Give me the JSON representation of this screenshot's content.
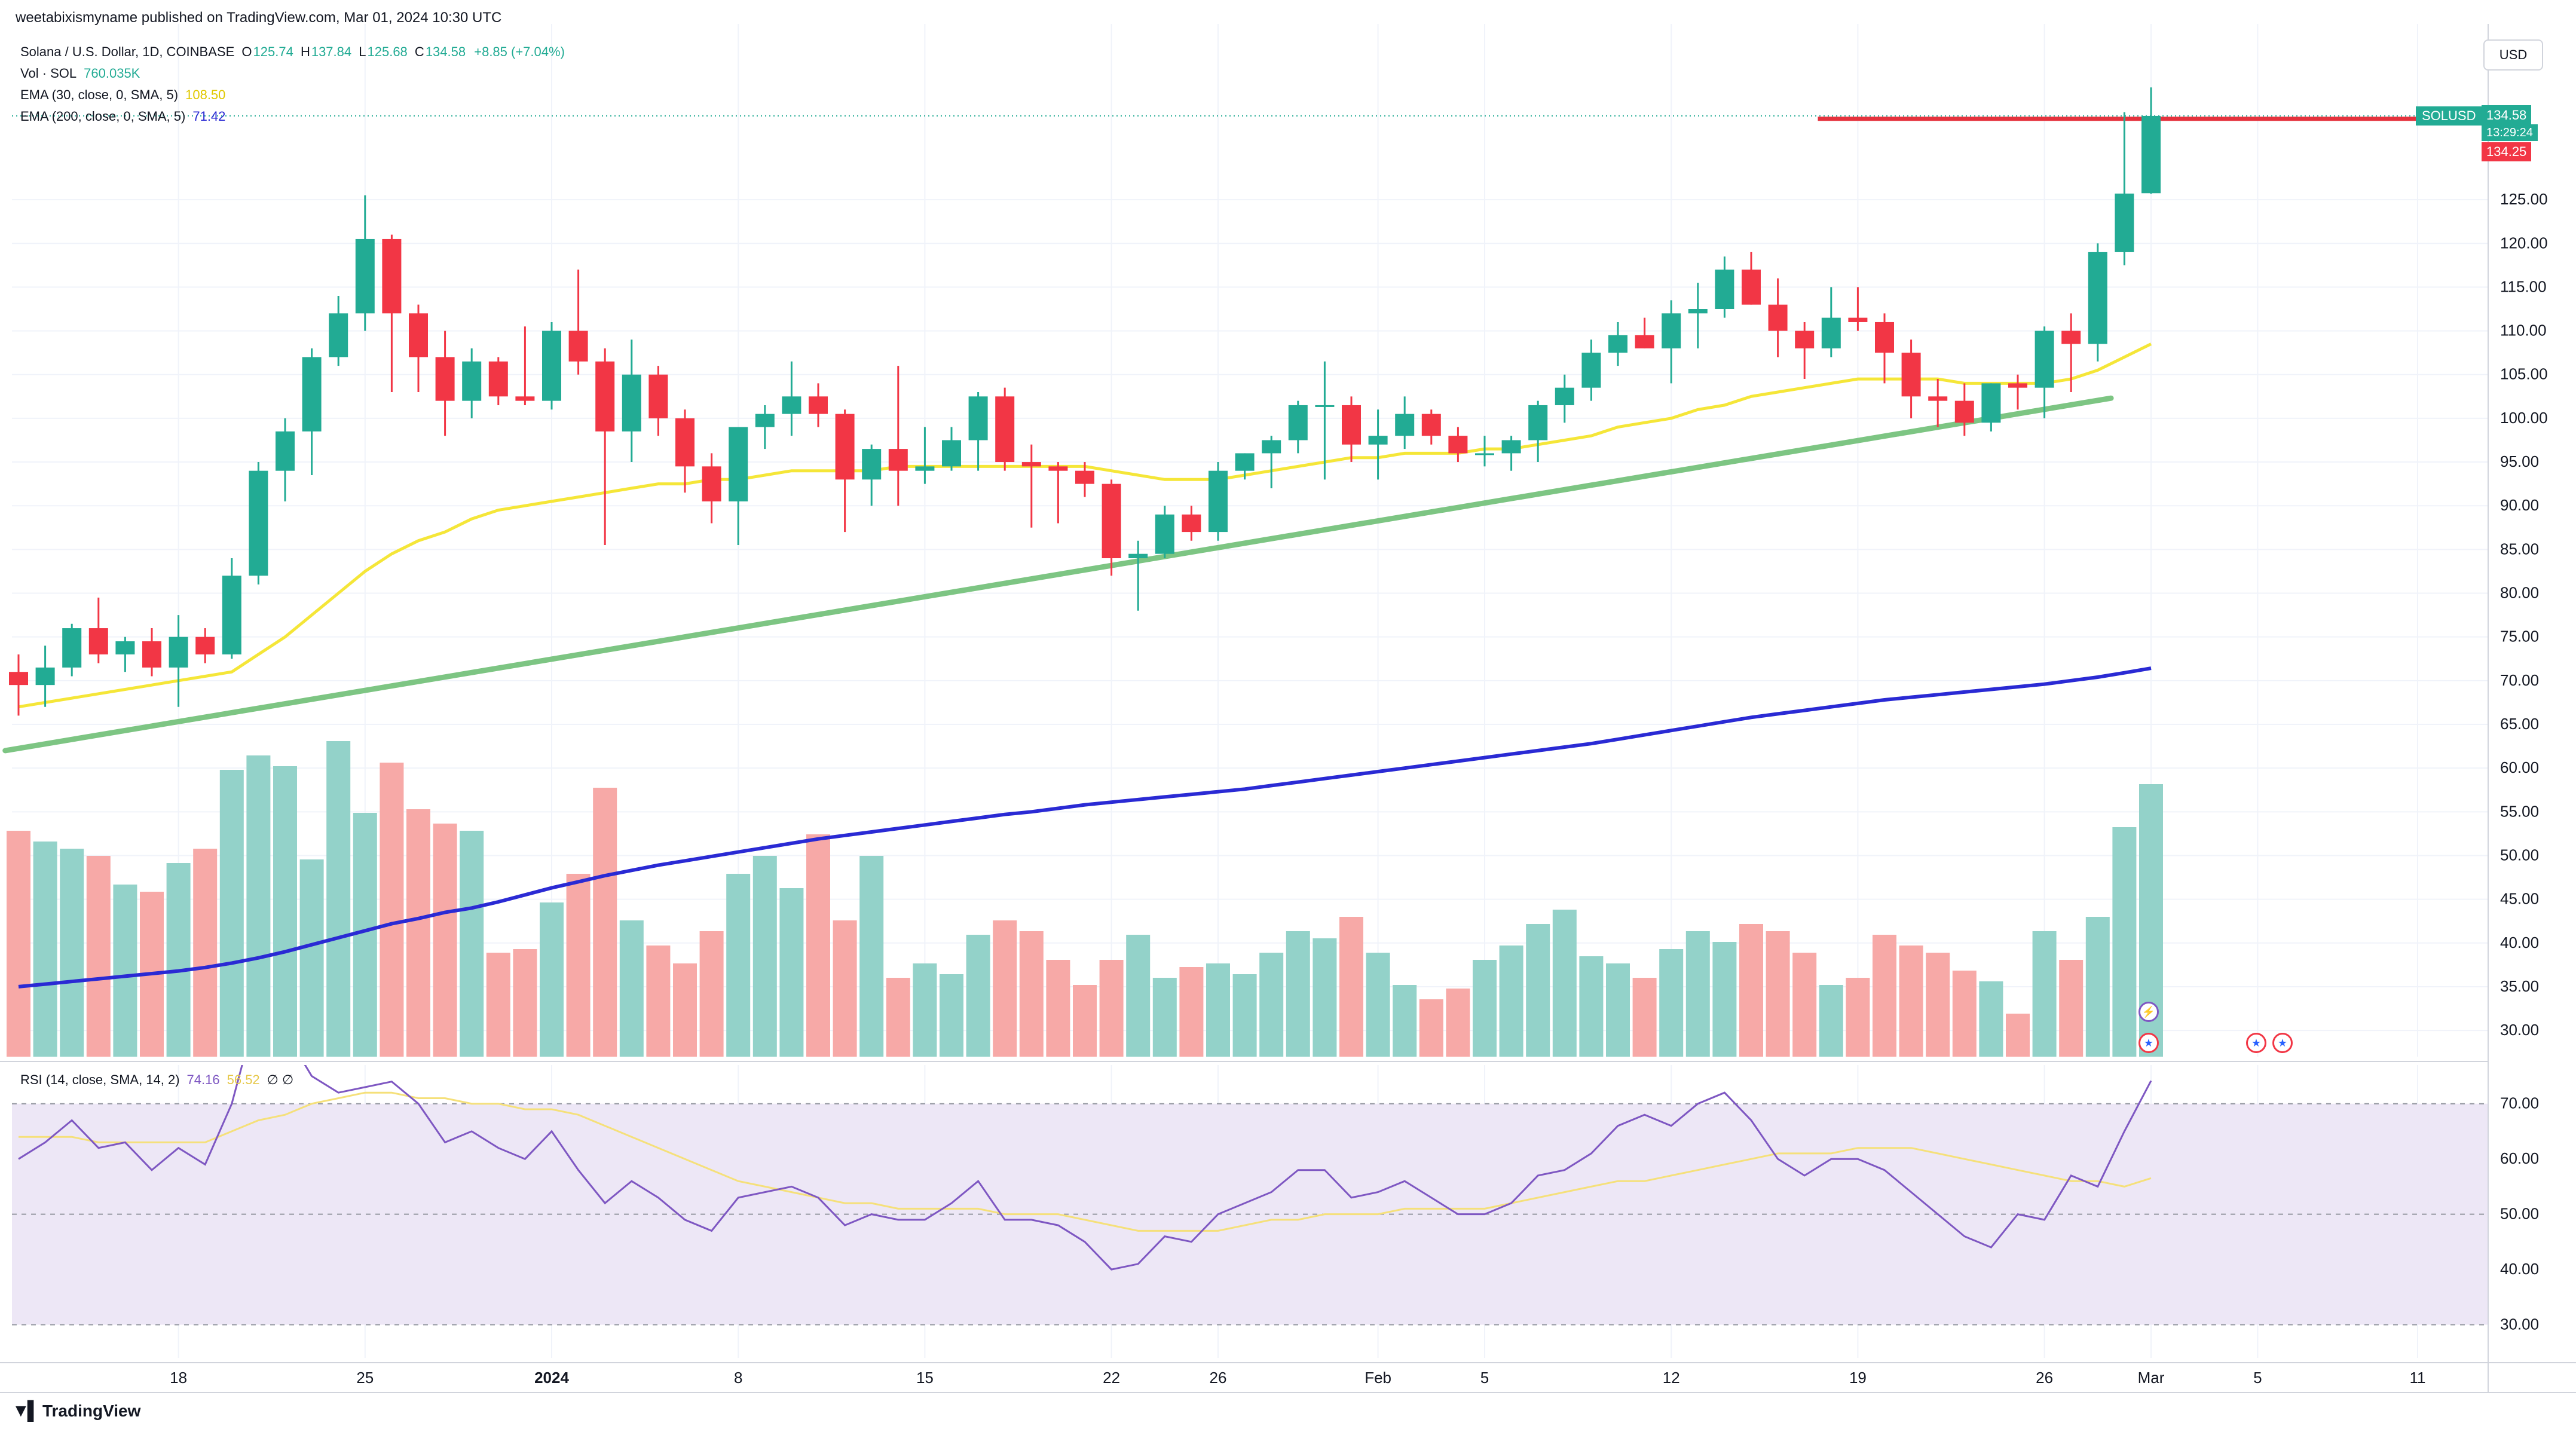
{
  "header": {
    "published": "weetabixismyname published on TradingView.com, Mar 01, 2024 10:30 UTC"
  },
  "legend": {
    "title": "Solana / U.S. Dollar, 1D, COINBASE",
    "ohlc": {
      "O_label": "O",
      "O": "125.74",
      "H_label": "H",
      "H": "137.84",
      "L_label": "L",
      "L": "125.68",
      "C_label": "C",
      "C": "134.58",
      "change": "+8.85 (+7.04%)"
    },
    "vol_label": "Vol · SOL",
    "vol_value": "760.035K",
    "ema30_label": "EMA (30, close, 0, SMA, 5)",
    "ema30_value": "108.50",
    "ema200_label": "EMA (200, close, 0, SMA, 5)",
    "ema200_value": "71.42",
    "rsi_label": "RSI (14, close, SMA, 14, 2)",
    "rsi_value": "74.16",
    "rsi_ma_value": "56.52",
    "rsi_extra": "∅ ∅"
  },
  "currency": "USD",
  "price_tags": {
    "symbol": "SOLUSD",
    "last": "134.58",
    "countdown": "13:29:24",
    "line_price": "134.25"
  },
  "footer": {
    "brand": "TradingView",
    "brand_icon": "tradingview-logo-icon"
  },
  "colors": {
    "up": "#22ab94",
    "down": "#f23645",
    "up_vol": "#93d2c9",
    "down_vol": "#f7a9a7",
    "ema30": "#f5e638",
    "ema200": "#2a2ad4",
    "trendline": "#7dc583",
    "hline": "#e5323d",
    "rsi": "#7e57c2",
    "rsi_ma": "#f5e07a",
    "rsi_band": "#ede7f6"
  },
  "chart_data": {
    "type": "candlestick",
    "title": "Solana / U.S. Dollar, 1D, COINBASE",
    "xlabel": "",
    "ylabel": "",
    "ylim": [
      27,
      141
    ],
    "y_ticks": [
      30,
      35,
      40,
      45,
      50,
      55,
      60,
      65,
      70,
      75,
      80,
      85,
      90,
      95,
      100,
      105,
      110,
      115,
      120,
      125
    ],
    "x_tick_labels": [
      {
        "label": "18",
        "i": 6
      },
      {
        "label": "25",
        "i": 13
      },
      {
        "label": "2024",
        "i": 20
      },
      {
        "label": "8",
        "i": 27
      },
      {
        "label": "15",
        "i": 34
      },
      {
        "label": "22",
        "i": 41
      },
      {
        "label": "26",
        "i": 45
      },
      {
        "label": "Feb",
        "i": 51
      },
      {
        "label": "5",
        "i": 55
      },
      {
        "label": "12",
        "i": 62
      },
      {
        "label": "19",
        "i": 69
      },
      {
        "label": "26",
        "i": 76
      },
      {
        "label": "Mar",
        "i": 80
      },
      {
        "label": "5",
        "i": 84
      },
      {
        "label": "11",
        "i": 90
      }
    ],
    "candles": [
      {
        "o": 71,
        "h": 73,
        "l": 66,
        "c": 69.5
      },
      {
        "o": 69.5,
        "h": 74,
        "l": 67,
        "c": 71.5
      },
      {
        "o": 71.5,
        "h": 76.5,
        "l": 70.5,
        "c": 76
      },
      {
        "o": 76,
        "h": 79.5,
        "l": 72,
        "c": 73
      },
      {
        "o": 73,
        "h": 75,
        "l": 71,
        "c": 74.5
      },
      {
        "o": 74.5,
        "h": 76,
        "l": 70.5,
        "c": 71.5
      },
      {
        "o": 71.5,
        "h": 77.5,
        "l": 67,
        "c": 75
      },
      {
        "o": 75,
        "h": 76,
        "l": 72,
        "c": 73
      },
      {
        "o": 73,
        "h": 84,
        "l": 72.5,
        "c": 82
      },
      {
        "o": 82,
        "h": 95,
        "l": 81,
        "c": 94
      },
      {
        "o": 94,
        "h": 100,
        "l": 90.5,
        "c": 98.5
      },
      {
        "o": 98.5,
        "h": 108,
        "l": 93.5,
        "c": 107
      },
      {
        "o": 107,
        "h": 114,
        "l": 106,
        "c": 112
      },
      {
        "o": 112,
        "h": 125.5,
        "l": 110,
        "c": 120.5
      },
      {
        "o": 120.5,
        "h": 121,
        "l": 103,
        "c": 112
      },
      {
        "o": 112,
        "h": 113,
        "l": 103,
        "c": 107
      },
      {
        "o": 107,
        "h": 110,
        "l": 98,
        "c": 102
      },
      {
        "o": 102,
        "h": 108,
        "l": 100,
        "c": 106.5
      },
      {
        "o": 106.5,
        "h": 107,
        "l": 101.5,
        "c": 102.5
      },
      {
        "o": 102.5,
        "h": 110.5,
        "l": 101.5,
        "c": 102
      },
      {
        "o": 102,
        "h": 111,
        "l": 101,
        "c": 110
      },
      {
        "o": 110,
        "h": 117,
        "l": 105,
        "c": 106.5
      },
      {
        "o": 106.5,
        "h": 108,
        "l": 85.5,
        "c": 98.5
      },
      {
        "o": 98.5,
        "h": 109,
        "l": 95,
        "c": 105
      },
      {
        "o": 105,
        "h": 106,
        "l": 98,
        "c": 100
      },
      {
        "o": 100,
        "h": 101,
        "l": 91.5,
        "c": 94.5
      },
      {
        "o": 94.5,
        "h": 96,
        "l": 88,
        "c": 90.5
      },
      {
        "o": 90.5,
        "h": 99,
        "l": 85.5,
        "c": 99
      },
      {
        "o": 99,
        "h": 101.5,
        "l": 96.5,
        "c": 100.5
      },
      {
        "o": 100.5,
        "h": 106.5,
        "l": 98,
        "c": 102.5
      },
      {
        "o": 102.5,
        "h": 104,
        "l": 99,
        "c": 100.5
      },
      {
        "o": 100.5,
        "h": 101,
        "l": 87,
        "c": 93
      },
      {
        "o": 93,
        "h": 97,
        "l": 90,
        "c": 96.5
      },
      {
        "o": 96.5,
        "h": 106,
        "l": 90,
        "c": 94
      },
      {
        "o": 94,
        "h": 99,
        "l": 92.5,
        "c": 94.5
      },
      {
        "o": 94.5,
        "h": 99,
        "l": 94,
        "c": 97.5
      },
      {
        "o": 97.5,
        "h": 103,
        "l": 94,
        "c": 102.5
      },
      {
        "o": 102.5,
        "h": 103.5,
        "l": 94,
        "c": 95
      },
      {
        "o": 95,
        "h": 97,
        "l": 87.5,
        "c": 94.5
      },
      {
        "o": 94.5,
        "h": 95,
        "l": 88,
        "c": 94
      },
      {
        "o": 94,
        "h": 95,
        "l": 91,
        "c": 92.5
      },
      {
        "o": 92.5,
        "h": 93,
        "l": 82,
        "c": 84
      },
      {
        "o": 84,
        "h": 86,
        "l": 78,
        "c": 84.5
      },
      {
        "o": 84.5,
        "h": 90,
        "l": 84,
        "c": 89
      },
      {
        "o": 89,
        "h": 90,
        "l": 86,
        "c": 87
      },
      {
        "o": 87,
        "h": 95,
        "l": 86,
        "c": 94
      },
      {
        "o": 94,
        "h": 96,
        "l": 93,
        "c": 96
      },
      {
        "o": 96,
        "h": 98,
        "l": 92,
        "c": 97.5
      },
      {
        "o": 97.5,
        "h": 102,
        "l": 96,
        "c": 101.5
      },
      {
        "o": 101.5,
        "h": 106.5,
        "l": 93,
        "c": 101.5
      },
      {
        "o": 101.5,
        "h": 102.5,
        "l": 95,
        "c": 97
      },
      {
        "o": 97,
        "h": 101,
        "l": 93,
        "c": 98
      },
      {
        "o": 98,
        "h": 102.5,
        "l": 96.5,
        "c": 100.5
      },
      {
        "o": 100.5,
        "h": 101,
        "l": 97,
        "c": 98
      },
      {
        "o": 98,
        "h": 99,
        "l": 95,
        "c": 96
      },
      {
        "o": 96,
        "h": 98,
        "l": 94.5,
        "c": 96
      },
      {
        "o": 96,
        "h": 98,
        "l": 94,
        "c": 97.5
      },
      {
        "o": 97.5,
        "h": 102,
        "l": 95,
        "c": 101.5
      },
      {
        "o": 101.5,
        "h": 105,
        "l": 99.5,
        "c": 103.5
      },
      {
        "o": 103.5,
        "h": 109,
        "l": 102,
        "c": 107.5
      },
      {
        "o": 107.5,
        "h": 111,
        "l": 106,
        "c": 109.5
      },
      {
        "o": 109.5,
        "h": 111.5,
        "l": 108,
        "c": 108
      },
      {
        "o": 108,
        "h": 113.5,
        "l": 104,
        "c": 112
      },
      {
        "o": 112,
        "h": 115.5,
        "l": 108,
        "c": 112.5
      },
      {
        "o": 112.5,
        "h": 118.5,
        "l": 111.5,
        "c": 117
      },
      {
        "o": 117,
        "h": 119,
        "l": 113,
        "c": 113
      },
      {
        "o": 113,
        "h": 116,
        "l": 107,
        "c": 110
      },
      {
        "o": 110,
        "h": 111,
        "l": 104.5,
        "c": 108
      },
      {
        "o": 108,
        "h": 115,
        "l": 107,
        "c": 111.5
      },
      {
        "o": 111.5,
        "h": 115,
        "l": 110,
        "c": 111
      },
      {
        "o": 111,
        "h": 112,
        "l": 104,
        "c": 107.5
      },
      {
        "o": 107.5,
        "h": 109,
        "l": 100,
        "c": 102.5
      },
      {
        "o": 102.5,
        "h": 104.5,
        "l": 99,
        "c": 102
      },
      {
        "o": 102,
        "h": 104,
        "l": 98,
        "c": 99.5
      },
      {
        "o": 99.5,
        "h": 104,
        "l": 98.5,
        "c": 104
      },
      {
        "o": 104,
        "h": 105,
        "l": 101,
        "c": 103.5
      },
      {
        "o": 103.5,
        "h": 110.5,
        "l": 100,
        "c": 110
      },
      {
        "o": 110,
        "h": 112,
        "l": 103,
        "c": 108.5
      },
      {
        "o": 108.5,
        "h": 120,
        "l": 106.5,
        "c": 119
      },
      {
        "o": 119,
        "h": 135,
        "l": 117.5,
        "c": 125.7
      },
      {
        "o": 125.74,
        "h": 137.84,
        "l": 125.68,
        "c": 134.58
      }
    ],
    "volume_relative": [
      0.63,
      0.6,
      0.58,
      0.56,
      0.48,
      0.46,
      0.54,
      0.58,
      0.8,
      0.84,
      0.81,
      0.55,
      0.88,
      0.68,
      0.82,
      0.69,
      0.65,
      0.63,
      0.29,
      0.3,
      0.43,
      0.51,
      0.75,
      0.38,
      0.31,
      0.26,
      0.35,
      0.51,
      0.56,
      0.47,
      0.62,
      0.38,
      0.56,
      0.22,
      0.26,
      0.23,
      0.34,
      0.38,
      0.35,
      0.27,
      0.2,
      0.27,
      0.34,
      0.22,
      0.25,
      0.26,
      0.23,
      0.29,
      0.35,
      0.33,
      0.39,
      0.29,
      0.2,
      0.16,
      0.19,
      0.27,
      0.31,
      0.37,
      0.41,
      0.28,
      0.26,
      0.22,
      0.3,
      0.35,
      0.32,
      0.37,
      0.35,
      0.29,
      0.2,
      0.22,
      0.34,
      0.31,
      0.29,
      0.24,
      0.21,
      0.12,
      0.35,
      0.27,
      0.39,
      0.64,
      0.76
    ],
    "rsi": [
      60,
      63,
      67,
      62,
      63,
      58,
      62,
      59,
      70,
      88,
      83,
      75,
      72,
      73,
      74,
      70,
      63,
      65,
      62,
      60,
      65,
      58,
      52,
      56,
      53,
      49,
      47,
      53,
      54,
      55,
      53,
      48,
      50,
      49,
      49,
      52,
      56,
      49,
      49,
      48,
      45,
      40,
      41,
      46,
      45,
      50,
      52,
      54,
      58,
      58,
      53,
      54,
      56,
      53,
      50,
      50,
      52,
      57,
      58,
      61,
      66,
      68,
      66,
      70,
      72,
      67,
      60,
      57,
      60,
      60,
      58,
      54,
      50,
      46,
      44,
      50,
      49,
      57,
      55,
      65,
      74.16
    ],
    "rsi_ma": [
      64,
      64,
      64,
      63,
      63,
      63,
      63,
      63,
      65,
      67,
      68,
      70,
      71,
      72,
      72,
      71,
      71,
      70,
      70,
      69,
      69,
      68,
      66,
      64,
      62,
      60,
      58,
      56,
      55,
      54,
      53,
      52,
      52,
      51,
      51,
      51,
      51,
      50,
      50,
      50,
      49,
      48,
      47,
      47,
      47,
      47,
      48,
      49,
      49,
      50,
      50,
      50,
      51,
      51,
      51,
      51,
      52,
      53,
      54,
      55,
      56,
      56,
      57,
      58,
      59,
      60,
      61,
      61,
      61,
      62,
      62,
      62,
      61,
      60,
      59,
      58,
      57,
      56,
      56,
      55,
      56.52
    ],
    "ema30": [
      67,
      67.5,
      68,
      68.5,
      69,
      69.5,
      70,
      70.5,
      71,
      73,
      75,
      77.5,
      80,
      82.5,
      84.5,
      86,
      87,
      88.5,
      89.5,
      90,
      90.5,
      91,
      91.5,
      92,
      92.5,
      92.5,
      93,
      93,
      93.5,
      94,
      94,
      94,
      94,
      94.5,
      94.5,
      94.5,
      94.5,
      94.5,
      94.5,
      94.5,
      94.5,
      94,
      93.5,
      93,
      93,
      93,
      93.5,
      94,
      94.5,
      95,
      95.5,
      95.5,
      96,
      96,
      96,
      96.5,
      96.5,
      97,
      97.5,
      98,
      99,
      99.5,
      100,
      101,
      101.5,
      102.5,
      103,
      103.5,
      104,
      104.5,
      104.5,
      104.5,
      104.5,
      104,
      104,
      104,
      104,
      104.5,
      105.5,
      107,
      108.5
    ],
    "ema200": [
      35,
      35.3,
      35.6,
      35.9,
      36.2,
      36.5,
      36.8,
      37.2,
      37.7,
      38.3,
      39,
      39.8,
      40.6,
      41.4,
      42.2,
      42.8,
      43.5,
      44,
      44.7,
      45.5,
      46.3,
      47,
      47.7,
      48.3,
      48.9,
      49.4,
      49.9,
      50.4,
      50.9,
      51.4,
      51.9,
      52.3,
      52.7,
      53.1,
      53.5,
      53.9,
      54.3,
      54.7,
      55,
      55.4,
      55.8,
      56.1,
      56.4,
      56.7,
      57,
      57.3,
      57.6,
      58,
      58.4,
      58.8,
      59.2,
      59.6,
      60,
      60.4,
      60.8,
      61.2,
      61.6,
      62,
      62.4,
      62.8,
      63.3,
      63.8,
      64.3,
      64.8,
      65.3,
      65.8,
      66.2,
      66.6,
      67,
      67.4,
      67.8,
      68.1,
      68.4,
      68.7,
      69,
      69.3,
      69.6,
      70,
      70.4,
      70.9,
      71.42
    ],
    "trendline": {
      "from": {
        "i": -0.5,
        "price": 62
      },
      "to": {
        "i": 78.5,
        "price": 102.3
      }
    },
    "horizontal_line": {
      "price": 134.25,
      "from_i": 67.5
    },
    "rsi_range": [
      24,
      77
    ],
    "rsi_ticks": [
      30,
      40,
      50,
      60,
      70
    ],
    "rsi_levels": [
      30,
      50,
      70
    ]
  }
}
